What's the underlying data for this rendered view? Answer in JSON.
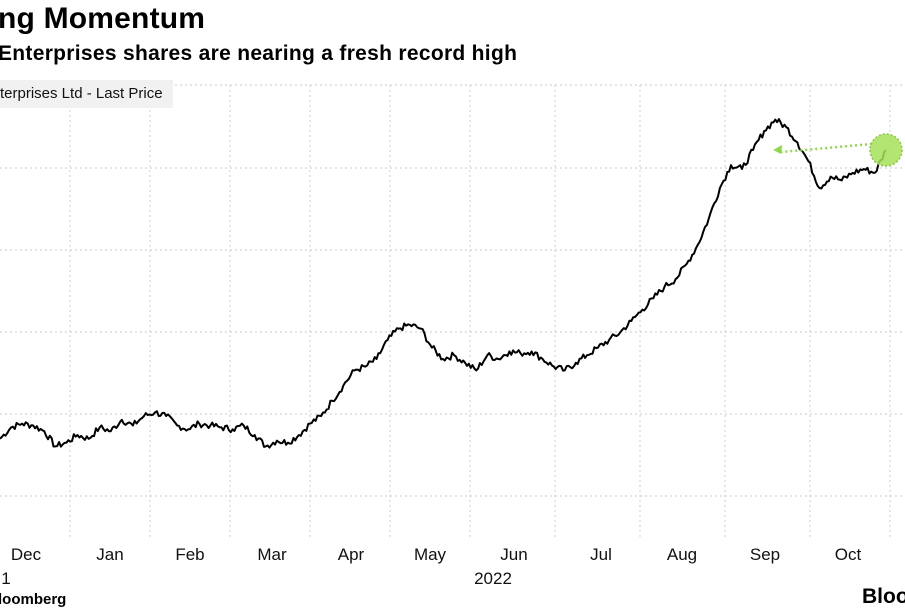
{
  "header": {
    "title": "ng Momentum",
    "subtitle": "Enterprises shares are nearing a fresh record high"
  },
  "footer": {
    "source": "loomberg",
    "brand": "Bloo"
  },
  "chart_data": {
    "type": "line",
    "title": "ng Momentum",
    "subtitle": "Enterprises shares are nearing a fresh record high",
    "series": [
      {
        "name": "terprises Ltd - Last Price",
        "color": "#000000",
        "values": [
          0.14,
          0.17,
          0.18,
          0.175,
          0.16,
          0.12,
          0.13,
          0.15,
          0.14,
          0.17,
          0.16,
          0.19,
          0.175,
          0.2,
          0.21,
          0.2,
          0.175,
          0.165,
          0.18,
          0.175,
          0.17,
          0.165,
          0.175,
          0.15,
          0.12,
          0.135,
          0.13,
          0.15,
          0.18,
          0.2,
          0.24,
          0.28,
          0.32,
          0.33,
          0.35,
          0.4,
          0.43,
          0.44,
          0.43,
          0.38,
          0.35,
          0.36,
          0.34,
          0.32,
          0.36,
          0.35,
          0.37,
          0.365,
          0.37,
          0.35,
          0.33,
          0.32,
          0.34,
          0.36,
          0.38,
          0.4,
          0.42,
          0.45,
          0.48,
          0.51,
          0.54,
          0.56,
          0.6,
          0.65,
          0.72,
          0.8,
          0.86,
          0.85,
          0.9,
          0.95,
          0.98,
          0.96,
          0.92,
          0.87,
          0.8,
          0.83,
          0.82,
          0.84,
          0.85,
          0.84,
          0.9
        ],
        "note": "y values normalized 0-1 relative to plot range; no y-axis labels printed"
      }
    ],
    "x_tick_labels": [
      "Dec",
      "Jan",
      "Feb",
      "Mar",
      "Apr",
      "May",
      "Jun",
      "Jul",
      "Aug",
      "Sep",
      "Oct"
    ],
    "x_year_labels": [
      "1",
      "2022"
    ],
    "ylim": [
      0,
      1
    ],
    "grid": true,
    "annotations": [
      {
        "type": "arrow",
        "label": "",
        "color": "#8fd64a",
        "from_index": 80,
        "to_index": 68
      },
      {
        "type": "marker-circle",
        "color": "#a6e05a",
        "at_index": 80
      }
    ],
    "legend_placement": "top-left"
  }
}
